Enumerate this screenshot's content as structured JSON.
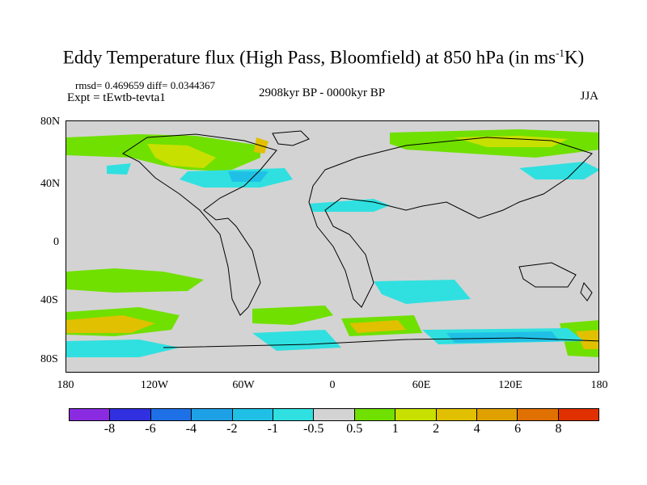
{
  "title": "Eddy Temperature flux (High Pass, Bloomfield) at 850 hPa (in ms",
  "title_sup": "-1",
  "title_end": "K)",
  "stats": "rmsd= 0.469659 diff= 0.0344367",
  "experiment": "Expt = tEwtb-tevta1",
  "period": "2908kyr BP - 0000kyr BP",
  "season": "JJA",
  "lat_labels": [
    "80N",
    "40N",
    "0",
    "40S",
    "80S"
  ],
  "lon_labels": [
    "180",
    "120W",
    "60W",
    "0",
    "60E",
    "120E",
    "180"
  ],
  "colorbar": {
    "labels": [
      "-8",
      "-6",
      "-4",
      "-2",
      "-1",
      "-0.5",
      "0.5",
      "1",
      "2",
      "4",
      "6",
      "8"
    ],
    "colors": [
      "#8a2be2",
      "#3030e0",
      "#1e70e6",
      "#1ea0e6",
      "#20c0e6",
      "#30e0e0",
      "#d3d3d3",
      "#70e000",
      "#c8e000",
      "#e0c000",
      "#e0a000",
      "#e07000",
      "#e03000"
    ]
  }
}
